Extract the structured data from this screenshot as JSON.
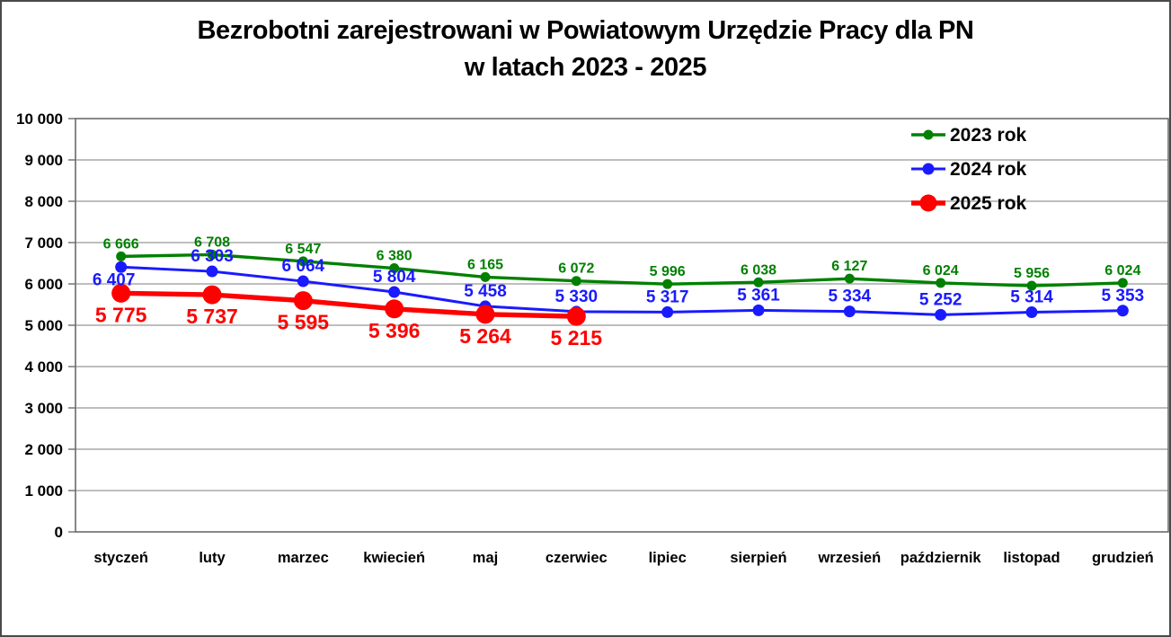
{
  "title": {
    "line1": "Bezrobotni zarejestrowani w Powiatowym Urzędzie Pracy dla PN",
    "line2": "w latach 2023 - 2025"
  },
  "chart_data": {
    "type": "line",
    "title": "Bezrobotni zarejestrowani w Powiatowym Urzędzie Pracy dla PN w latach 2023 - 2025",
    "categories": [
      "styczeń",
      "luty",
      "marzec",
      "kwiecień",
      "maj",
      "czerwiec",
      "lipiec",
      "sierpień",
      "wrzesień",
      "październik",
      "listopad",
      "grudzień"
    ],
    "series": [
      {
        "name": "2023 rok",
        "color": "#008000",
        "values": [
          6666,
          6708,
          6547,
          6380,
          6165,
          6072,
          5996,
          6038,
          6127,
          6024,
          5956,
          6024
        ]
      },
      {
        "name": "2024 rok",
        "color": "#1a1aff",
        "values": [
          6407,
          6303,
          6064,
          5804,
          5458,
          5330,
          5317,
          5361,
          5334,
          5252,
          5314,
          5353
        ]
      },
      {
        "name": "2025 rok",
        "color": "#ff0000",
        "values": [
          5775,
          5737,
          5595,
          5396,
          5264,
          5215
        ]
      }
    ],
    "ylim": [
      0,
      10000
    ],
    "yticks": [
      0,
      1000,
      2000,
      3000,
      4000,
      5000,
      6000,
      7000,
      8000,
      9000,
      10000
    ],
    "number_format": "space-thousands",
    "grid": "horizontal",
    "legend_position": "top-right-inside",
    "data_labels": true,
    "colors": {
      "grid": "#a9a9a9",
      "plot_border": "#6b6b6b",
      "axis_text": "#000000",
      "legend_text": "#000000"
    }
  }
}
